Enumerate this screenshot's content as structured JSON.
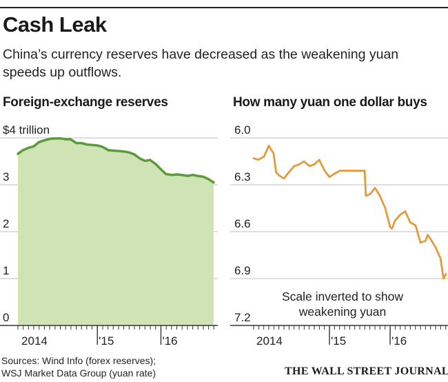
{
  "header": {
    "title": "Cash Leak",
    "subtitle": "China’s currency reserves have decreased as the weakening yuan speeds up outflows."
  },
  "colors": {
    "reserves_line": "#5b9a3b",
    "reserves_fill": "#cfe3b4",
    "yuan_line": "#e39a3c",
    "grid": "#bfbfbf",
    "axis": "#333333"
  },
  "chart_data": [
    {
      "type": "area",
      "title": "Foreign-exchange reserves",
      "ylabel": "$ trillion",
      "ylim": [
        0,
        4
      ],
      "yticks": [
        0,
        1,
        2,
        3,
        4
      ],
      "ytick_labels": [
        "0",
        "1",
        "2",
        "3",
        "$4 trillion"
      ],
      "x_start": 2013.75,
      "x_end": 2016.83,
      "xticks": [
        {
          "label": "2014",
          "x": 2014.0,
          "tick": false
        },
        {
          "label": "'15",
          "x": 2015.0,
          "tick": true
        },
        {
          "label": "'16",
          "x": 2016.0,
          "tick": true
        }
      ],
      "series": [
        {
          "name": "Foreign-exchange reserves",
          "x": [
            2013.75,
            2013.83,
            2013.92,
            2014.0,
            2014.08,
            2014.17,
            2014.25,
            2014.33,
            2014.42,
            2014.5,
            2014.58,
            2014.67,
            2014.75,
            2014.83,
            2014.92,
            2015.0,
            2015.08,
            2015.17,
            2015.25,
            2015.33,
            2015.42,
            2015.5,
            2015.58,
            2015.67,
            2015.75,
            2015.83,
            2015.92,
            2016.0,
            2016.08,
            2016.17,
            2016.25,
            2016.33,
            2016.42,
            2016.5,
            2016.58,
            2016.67,
            2016.75,
            2016.83
          ],
          "values": [
            3.66,
            3.74,
            3.79,
            3.82,
            3.91,
            3.95,
            3.98,
            3.99,
            3.99,
            3.97,
            3.97,
            3.89,
            3.89,
            3.86,
            3.85,
            3.84,
            3.81,
            3.74,
            3.73,
            3.72,
            3.71,
            3.69,
            3.65,
            3.56,
            3.51,
            3.53,
            3.44,
            3.33,
            3.23,
            3.21,
            3.22,
            3.21,
            3.19,
            3.21,
            3.19,
            3.17,
            3.12,
            3.05
          ]
        }
      ]
    },
    {
      "type": "line",
      "title": "How many yuan one dollar buys",
      "ylim": [
        6.0,
        7.2
      ],
      "inverted": true,
      "yticks": [
        6.0,
        6.3,
        6.6,
        6.9,
        7.2
      ],
      "ytick_labels": [
        "6.0",
        "6.3",
        "6.6",
        "6.9",
        "7.2"
      ],
      "x_start": 2013.75,
      "x_end": 2016.92,
      "xticks": [
        {
          "label": "2014",
          "x": 2014.0,
          "tick": false
        },
        {
          "label": "'15",
          "x": 2015.0,
          "tick": true
        },
        {
          "label": "'16",
          "x": 2016.0,
          "tick": true
        }
      ],
      "annotation": [
        "Scale inverted to show",
        "weakening yuan"
      ],
      "series": [
        {
          "name": "Yuan per dollar",
          "x": [
            2013.75,
            2013.83,
            2013.92,
            2014.0,
            2014.08,
            2014.12,
            2014.17,
            2014.25,
            2014.33,
            2014.42,
            2014.5,
            2014.58,
            2014.67,
            2014.75,
            2014.83,
            2014.92,
            2015.0,
            2015.08,
            2015.17,
            2015.25,
            2015.33,
            2015.42,
            2015.5,
            2015.58,
            2015.6,
            2015.67,
            2015.75,
            2015.83,
            2015.92,
            2016.0,
            2016.03,
            2016.08,
            2016.17,
            2016.25,
            2016.33,
            2016.42,
            2016.5,
            2016.58,
            2016.62,
            2016.67,
            2016.75,
            2016.83,
            2016.88,
            2016.92
          ],
          "values": [
            6.13,
            6.14,
            6.12,
            6.05,
            6.1,
            6.22,
            6.24,
            6.26,
            6.22,
            6.18,
            6.17,
            6.15,
            6.18,
            6.17,
            6.14,
            6.21,
            6.25,
            6.23,
            6.21,
            6.21,
            6.21,
            6.21,
            6.21,
            6.21,
            6.37,
            6.36,
            6.32,
            6.37,
            6.45,
            6.57,
            6.58,
            6.53,
            6.49,
            6.47,
            6.54,
            6.56,
            6.67,
            6.66,
            6.62,
            6.65,
            6.7,
            6.77,
            6.9,
            6.87
          ]
        }
      ]
    }
  ],
  "footer": {
    "source_line1": "Sources: Wind Info (forex reserves);",
    "source_line2": "WSJ Market Data Group (yuan rate)",
    "brand": "THE WALL STREET JOURNAL."
  }
}
